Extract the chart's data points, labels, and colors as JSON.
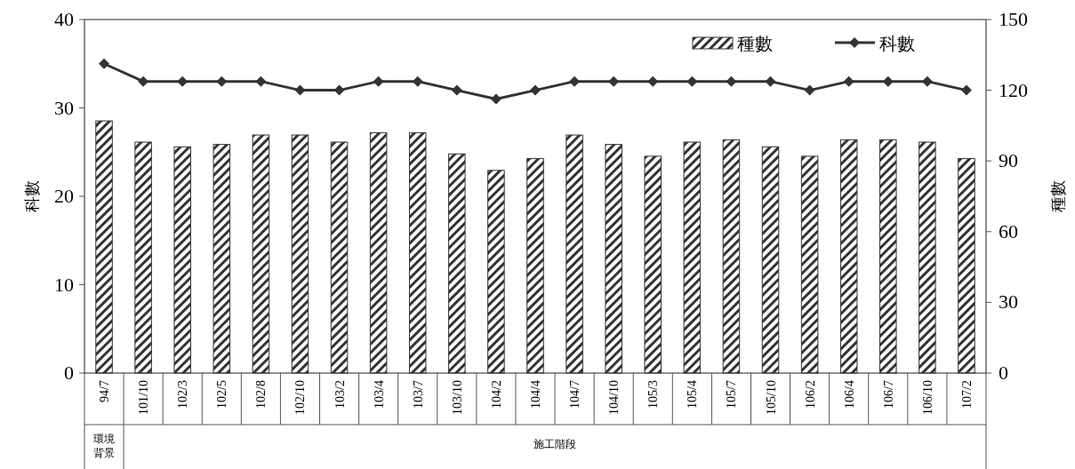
{
  "chart_data": {
    "type": "bar",
    "categories": [
      "94/7",
      "101/10",
      "102/3",
      "102/5",
      "102/8",
      "102/10",
      "103/2",
      "103/4",
      "103/7",
      "103/10",
      "104/2",
      "104/4",
      "104/7",
      "104/10",
      "105/3",
      "105/4",
      "105/7",
      "105/10",
      "106/2",
      "106/4",
      "106/7",
      "106/10",
      "107/2"
    ],
    "ylabel": "科數",
    "y2label": "種數",
    "ylim": [
      0,
      40
    ],
    "yticks": [
      0,
      10,
      20,
      30,
      40
    ],
    "y2lim": [
      0,
      150
    ],
    "y2ticks": [
      0,
      30,
      60,
      90,
      120,
      150
    ],
    "legend": "top right",
    "grid": false,
    "marker": "diamond",
    "series": [
      {
        "name": "種數",
        "axis": "y2",
        "color": "#333333",
        "values": [
          107,
          98,
          96,
          97,
          101,
          101,
          98,
          102,
          102,
          93,
          86,
          91,
          101,
          97,
          92,
          98,
          99,
          96,
          92,
          99,
          99,
          98,
          91
        ]
      },
      {
        "name": "科數",
        "type": "line",
        "color": "#333333",
        "values": [
          35,
          33,
          33,
          33,
          33,
          32,
          32,
          33,
          33,
          32,
          31,
          32,
          33,
          33,
          33,
          33,
          33,
          33,
          32,
          33,
          33,
          33,
          32
        ]
      }
    ],
    "annotations": [
      "環境背景",
      "施工階段"
    ]
  }
}
